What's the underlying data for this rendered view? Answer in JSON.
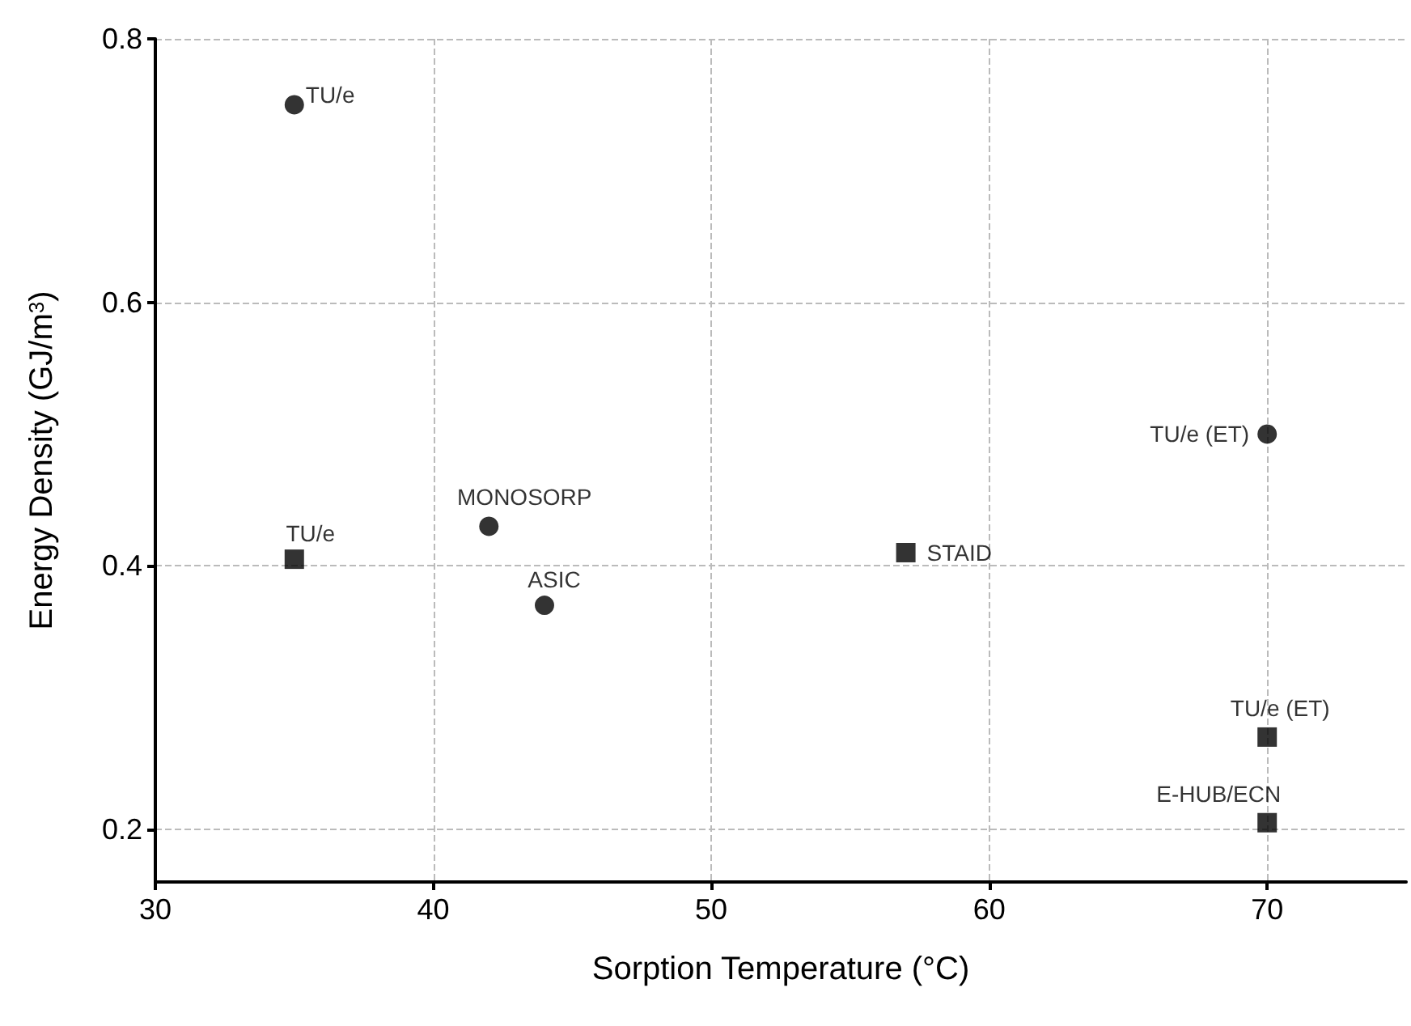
{
  "chart_data": {
    "type": "scatter",
    "xlabel": "Sorption Temperature (°C)",
    "ylabel": "Energy Density (GJ/m$^{3}$)",
    "xlim": [
      30,
      75
    ],
    "xticks": [
      30,
      40,
      50,
      60,
      70
    ],
    "ylim": [
      0.16,
      0.8
    ],
    "yticks": [
      0.2,
      0.4,
      0.6,
      0.8
    ],
    "grid": true,
    "series": [
      {
        "color": "#000000",
        "marker": "circle",
        "x": [
          35,
          42,
          44,
          70
        ],
        "values": [
          0.75,
          0.43,
          0.37,
          0.5
        ]
      },
      {
        "color": "#000000",
        "marker": "square",
        "x": [
          35,
          57,
          70,
          70
        ],
        "values": [
          0.405,
          0.41,
          0.27,
          0.205
        ]
      }
    ],
    "annotations": [
      {
        "text": "TU/e",
        "x": 35,
        "y": 0.75
      },
      {
        "text": "MONOSORP",
        "x": 42,
        "y": 0.43
      },
      {
        "text": "ASIC",
        "x": 44,
        "y": 0.37
      },
      {
        "text": "TU/e (ET)",
        "x": 70,
        "y": 0.5
      },
      {
        "text": "TU/e",
        "x": 35,
        "y": 0.405
      },
      {
        "text": "STAID",
        "x": 57,
        "y": 0.41
      },
      {
        "text": "TU/e (ET)",
        "x": 70,
        "y": 0.27
      },
      {
        "text": "E-HUB/ECN",
        "x": 70,
        "y": 0.205
      }
    ]
  }
}
